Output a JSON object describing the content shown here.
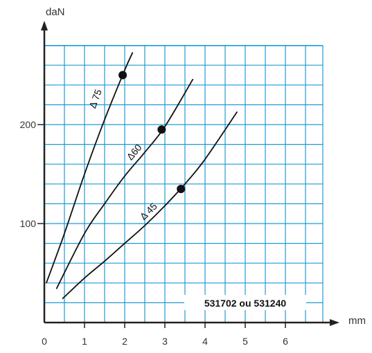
{
  "chart_data": {
    "type": "line",
    "title": "",
    "xlabel": "mm",
    "ylabel": "daN",
    "xlim": [
      0,
      7
    ],
    "ylim": [
      0,
      280
    ],
    "x_ticks": [
      {
        "value": 0,
        "label": "0"
      },
      {
        "value": 1,
        "label": "1"
      },
      {
        "value": 2,
        "label": "2"
      },
      {
        "value": 3,
        "label": "3"
      },
      {
        "value": 4,
        "label": "4"
      },
      {
        "value": 5,
        "label": "5"
      },
      {
        "value": 6,
        "label": "6"
      }
    ],
    "y_ticks": [
      {
        "value": 100,
        "label": "100"
      },
      {
        "value": 200,
        "label": "200"
      }
    ],
    "grid": true,
    "grid_x_step": 0.5,
    "grid_y_step": 20,
    "colors": {
      "grid": "#1e9ad6",
      "axis": "#222222",
      "curve": "#111111",
      "text": "#333333"
    },
    "reference_label": "531702 ou 531240",
    "series": [
      {
        "name": "Δ 75",
        "x": [
          0.05,
          0.5,
          1.0,
          1.5,
          2.0,
          2.2
        ],
        "y": [
          40,
          90,
          150,
          205,
          255,
          273
        ],
        "marker": {
          "x": 1.95,
          "y": 250
        },
        "label_position": {
          "x": 1.35,
          "y": 225
        }
      },
      {
        "name": "Δ60",
        "x": [
          0.3,
          1.0,
          1.5,
          2.0,
          2.5,
          3.0,
          3.7
        ],
        "y": [
          34,
          90,
          120,
          148,
          172,
          198,
          246
        ],
        "marker": {
          "x": 2.92,
          "y": 195
        },
        "label_position": {
          "x": 2.3,
          "y": 170
        }
      },
      {
        "name": "Δ 45",
        "x": [
          0.45,
          1.0,
          1.5,
          2.0,
          2.5,
          3.0,
          3.5,
          4.0,
          4.8
        ],
        "y": [
          24,
          45,
          62,
          80,
          98,
          118,
          140,
          165,
          213
        ],
        "marker": {
          "x": 3.4,
          "y": 135
        },
        "label_position": {
          "x": 2.65,
          "y": 110
        }
      }
    ]
  }
}
